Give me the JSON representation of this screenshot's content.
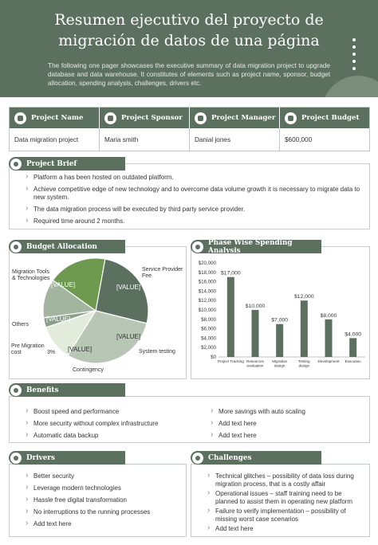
{
  "header": {
    "title_line1": "Resumen ejecutivo del proyecto de",
    "title_line2": "migración de datos de una página",
    "description": "The following one pager showcases the executive summary of data migration project to upgrade database and data warehouse. It constitutes of elements such as project name, sponsor, budget allocation, spending analysis, challenges, drivers etc."
  },
  "project_table": {
    "headers": [
      "Project Name",
      "Project Sponsor",
      "Project Manager",
      "Project Budget"
    ],
    "values": [
      "Data migration project",
      "Maria smith",
      "Danial jones",
      "$600,000"
    ]
  },
  "project_brief": {
    "title": "Project Brief",
    "items": [
      "Platform a has been hosted on outdated platform.",
      "Achieve competitive edge of new technology and to overcome data volume growth it is necessary to migrate data to new system.",
      "The data migration process will be executed by third party service provider.",
      "Required time around 2 months."
    ]
  },
  "budget_allocation": {
    "title": "Budget Allocation",
    "slice_value_label": "[VALUE]",
    "labels": {
      "migration": "Migration Tools & Technologies",
      "service": "Service Provider Fee",
      "others": "Others",
      "pre_migration": "Pre Migration cost",
      "pre_migration_value": "3%",
      "contingency": "Contingency",
      "system_testing": "System testing"
    },
    "colors": [
      "#5c7060",
      "#6d9a4e",
      "#8a9e8b",
      "#e3ebdb",
      "#b8c6b6",
      "#a4b59f"
    ]
  },
  "phase_spending": {
    "title": "Phase Wise Spending Analysis"
  },
  "chart_data": {
    "type": "bar",
    "categories": [
      "Project Tracking",
      "Resources evaluation",
      "Migration design",
      "Testing design",
      "Development",
      "Execution"
    ],
    "values": [
      17000,
      10000,
      7000,
      12000,
      8000,
      4000
    ],
    "value_labels": [
      "$17,000",
      "$10,000",
      "$7,000",
      "$12,000",
      "$8,000",
      "$4,000"
    ],
    "yticks": [
      "$0",
      "$2,000",
      "$4,000",
      "$6,000",
      "$8,000",
      "$10,000",
      "$12,000",
      "$14,000",
      "$16,000",
      "$18,000",
      "$20,000"
    ],
    "ylim": [
      0,
      20000
    ],
    "grid": false,
    "bar_color": "#5c7060"
  },
  "benefits": {
    "title": "Benefits",
    "left": [
      "Boost speed and performance",
      "More security without complex infrastructure",
      "Automatic data backup"
    ],
    "right": [
      "More savings with auto scaling",
      "Add text here",
      "Add text here"
    ]
  },
  "drivers": {
    "title": "Drivers",
    "items": [
      "Better security",
      "Leverage modern technologies",
      "Hassle free digital transformation",
      "No interruptions to the running processes",
      "Add text here"
    ]
  },
  "challenges": {
    "title": "Challenges",
    "items": [
      "Technical glitches – possibility of data loss during migration process, that is a costly affair",
      "Operational issues – staff training need to be planned to assist them in operating new platform",
      "Failure to verify implementation – possibility of missing worst case scenarios",
      "Add text here"
    ]
  }
}
